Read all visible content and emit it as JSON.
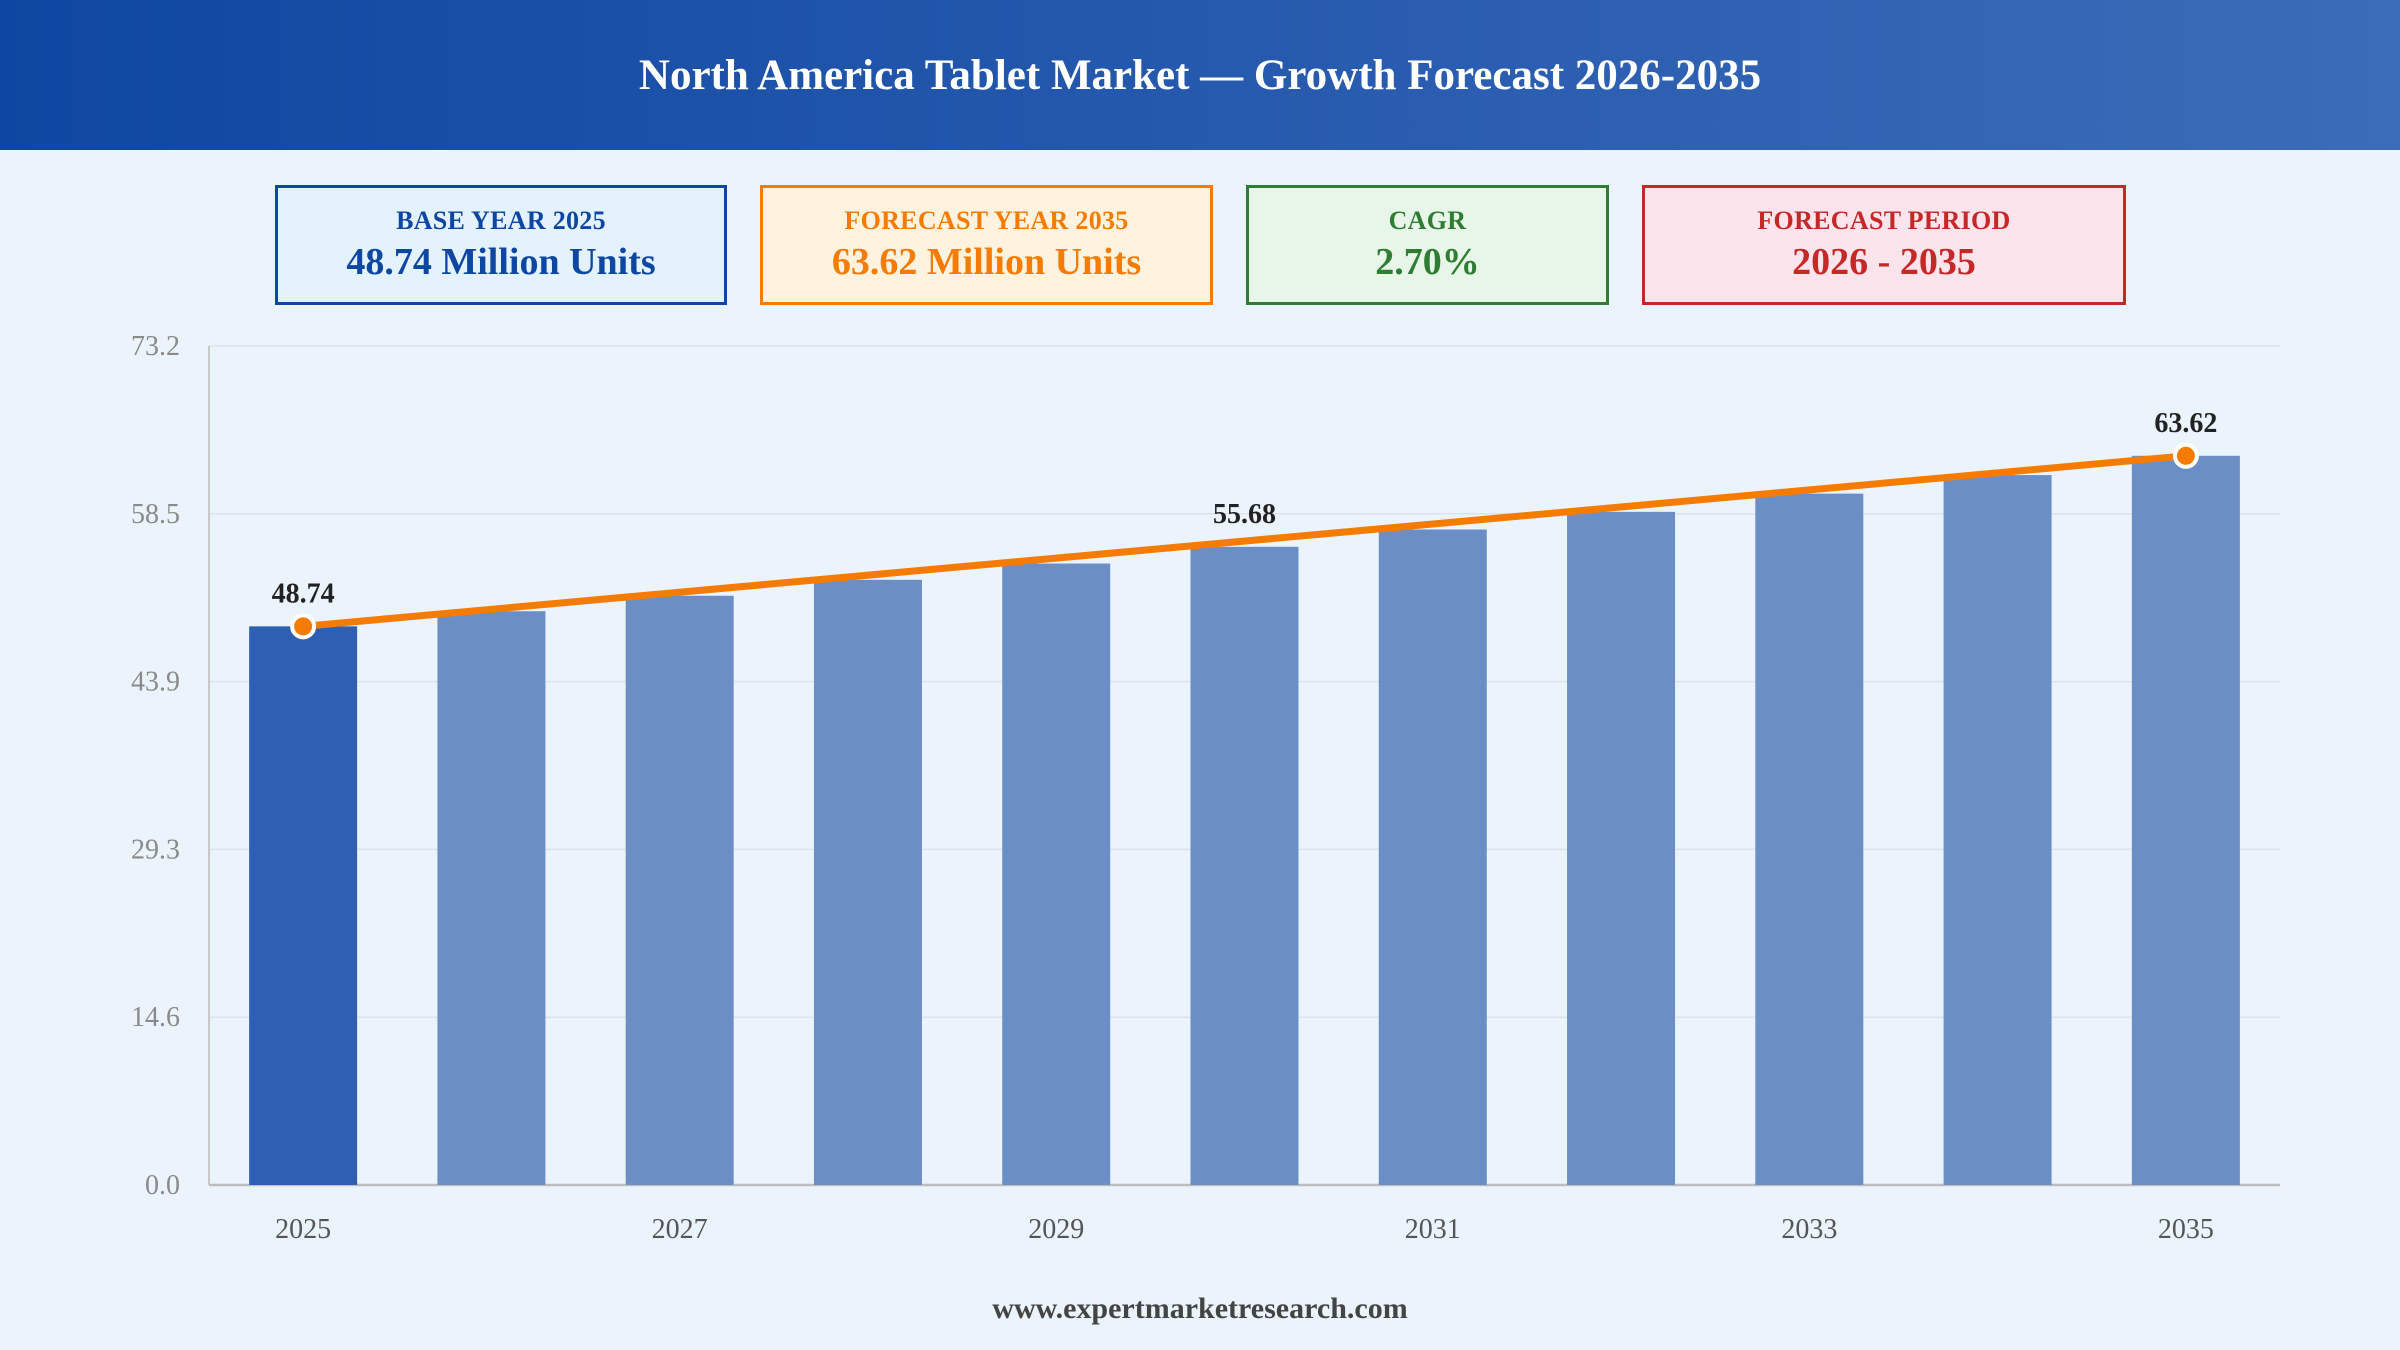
{
  "header": {
    "title": "North America Tablet Market — Growth Forecast 2026-2035"
  },
  "kpis": [
    {
      "label": "BASE YEAR 2025",
      "value": "48.74 Million Units",
      "color": "#0e47a1",
      "bg": "#e3f2fd"
    },
    {
      "label": "FORECAST YEAR 2035",
      "value": "63.62 Million Units",
      "color": "#f57c00",
      "bg": "#fff3e0"
    },
    {
      "label": "CAGR",
      "value": "2.70%",
      "color": "#2e7d32",
      "bg": "#e8f5e9"
    },
    {
      "label": "FORECAST PERIOD",
      "value": "2026 - 2035",
      "color": "#c62828",
      "bg": "#fce4ec"
    }
  ],
  "chart_data": {
    "type": "bar",
    "categories": [
      "2025",
      "2026",
      "2027",
      "2028",
      "2029",
      "2030",
      "2031",
      "2032",
      "2033",
      "2034",
      "2035"
    ],
    "values": [
      48.74,
      50.06,
      51.41,
      52.8,
      54.22,
      55.68,
      57.19,
      58.73,
      60.32,
      61.94,
      63.62
    ],
    "xtick_labels": [
      "2025",
      "2027",
      "2029",
      "2031",
      "2033",
      "2035"
    ],
    "ylim": [
      0,
      73.2
    ],
    "yticks": [
      "0.0",
      "14.6",
      "29.3",
      "43.9",
      "58.5",
      "73.2"
    ],
    "data_labels": [
      {
        "index": 0,
        "text": "48.74"
      },
      {
        "index": 5,
        "text": "55.68"
      },
      {
        "index": 10,
        "text": "63.62"
      }
    ],
    "trend_line": true,
    "colors": {
      "highlight_bar": "#2f5fb0",
      "bar": "#6b8fc5",
      "line": "#f57c00",
      "grid": "#dde3ea"
    }
  },
  "footer": {
    "source": "www.expertmarketresearch.com"
  }
}
